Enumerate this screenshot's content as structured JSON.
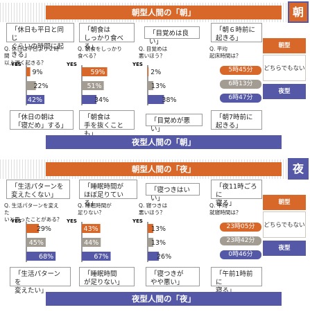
{
  "colors": {
    "morning": "#d8672a",
    "neutral": "#a39c93",
    "night": "#5458a6"
  },
  "legend": {
    "morning": "朝型",
    "neutral": "どちらでもない",
    "night": "夜型"
  },
  "axis_yes": "YES",
  "morning": {
    "top_title": "朝型人間の「朝」",
    "bottom_title": "夜型人間の「朝」",
    "tag": "朝",
    "top_cards": [
      "「休日も平日と同じ\nぐらいの時間に起きる」",
      "「朝食は\nしっかり食べる」",
      "「目覚めは良い」",
      "「朝６時前に\n起きる」"
    ],
    "bottom_cards": [
      "「休日の朝は\n「寝だめ」する」",
      "「朝食は\n手を抜くことも」",
      "「目覚めが悪い」",
      "「朝7時前に\n起きる」"
    ],
    "questions": [
      "Q. 休日は平日より２時間\n以上遅く起きる？",
      "Q. 朝食をしっかり\n食べる？",
      "Q. 目覚めは\n悪いほう？",
      "Q. 平均\n起床時間は？"
    ],
    "times": [
      "5時45分",
      "6時13分",
      "6時47分"
    ]
  },
  "night": {
    "top_title": "朝型人間の「夜」",
    "bottom_title": "夜型人間の「夜」",
    "tag": "夜",
    "top_cards": [
      "「生活パターンを\n変えたくない」",
      "「睡眠時間が\nほぼ足りている」",
      "「寝つきはいい」",
      "「夜11時ごろに\n寝る」"
    ],
    "bottom_cards": [
      "「生活パターンを\n変えたい」",
      "「睡眠時間\nが足りない」",
      "「寝つきが\nやや悪い」",
      "「午前1時前に\n寝る」"
    ],
    "questions": [
      "Q. 生活パターンを変えた\nいと思ったことがある？",
      "Q. 睡眠時間が\n足りない？",
      "Q. 寝つきは\n悪いほう？",
      "Q. 平均\n就寝時間は？"
    ],
    "times": [
      "23時05分",
      "23時42分",
      "0時46分"
    ]
  },
  "chart_data": [
    {
      "type": "bar",
      "title": "朝型人間の「朝」 / 夜型人間の「朝」",
      "categories": [
        "朝型",
        "どちらでもない",
        "夜型"
      ],
      "panels": [
        {
          "question": "Q. 休日は平日より２時間以上遅く起きる？",
          "values": [
            9,
            22,
            42
          ],
          "labels": [
            "9%",
            "22%",
            "42%"
          ]
        },
        {
          "question": "Q. 朝食をしっかり食べる？",
          "values": [
            59,
            51,
            34
          ],
          "labels": [
            "59%",
            "51%",
            "34%"
          ]
        },
        {
          "question": "Q. 目覚めは悪いほう？",
          "values": [
            2,
            13,
            38
          ],
          "labels": [
            "2%",
            "13%",
            "38%"
          ]
        }
      ],
      "average_time": {
        "question": "Q. 平均起床時間は？",
        "values": [
          "5時45分",
          "6時13分",
          "6時47分"
        ]
      }
    },
    {
      "type": "bar",
      "title": "朝型人間の「夜」 / 夜型人間の「夜」",
      "categories": [
        "朝型",
        "どちらでもない",
        "夜型"
      ],
      "panels": [
        {
          "question": "Q. 生活パターンを変えたいと思ったことがある？",
          "values": [
            29,
            45,
            68
          ],
          "labels": [
            "29%",
            "45%",
            "68%"
          ]
        },
        {
          "question": "Q. 睡眠時間が足りない？",
          "values": [
            43,
            44,
            67
          ],
          "labels": [
            "43%",
            "44%",
            "67%"
          ]
        },
        {
          "question": "Q. 寝つきは悪いほう？",
          "values": [
            13,
            13,
            26
          ],
          "labels": [
            "13%",
            "13%",
            "26%"
          ]
        }
      ],
      "average_time": {
        "question": "Q. 平均就寝時間は？",
        "values": [
          "23時05分",
          "23時42分",
          "0時46分"
        ]
      }
    }
  ]
}
